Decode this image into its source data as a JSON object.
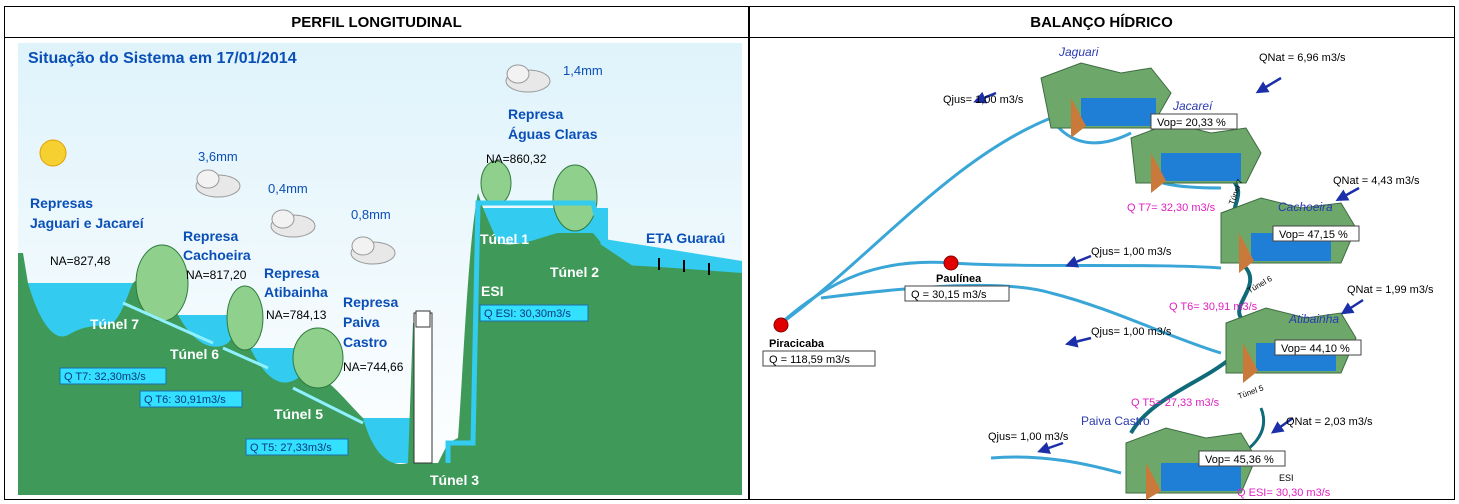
{
  "headers": {
    "left": "PERFIL LONGITUDINAL",
    "right": "BALANÇO HÍDRICO"
  },
  "profile": {
    "title": "Situação do Sistema em 17/01/2014",
    "rain": {
      "aguas_claras": "1,4mm",
      "cachoeira": "3,6mm",
      "atibainha": "0,4mm",
      "paiva": "0,8mm"
    },
    "labels": {
      "jaguari_1": "Represas",
      "jaguari_2": "Jaguari e Jacareí",
      "jaguari_na": "NA=827,48",
      "cachoeira_1": "Represa",
      "cachoeira_2": "Cachoeira",
      "cachoeira_na": "NA=817,20",
      "atibainha_1": "Represa",
      "atibainha_2": "Atibainha",
      "atibainha_na": "NA=784,13",
      "paiva_1": "Represa",
      "paiva_2": "Paiva",
      "paiva_3": "Castro",
      "paiva_na": "NA=744,66",
      "aguas_1": "Represa",
      "aguas_2": "Águas Claras",
      "aguas_na": "NA=860,32",
      "tunel7": "Túnel 7",
      "tunel6": "Túnel 6",
      "tunel5": "Túnel 5",
      "tunel3": "Túnel 3",
      "tunel1": "Túnel 1",
      "tunel2": "Túnel 2",
      "esi": "ESI",
      "eta": "ETA Guaraú"
    },
    "flows": {
      "qt7": "Q T7: 32,30m3/s",
      "qt6": "Q T6: 30,91m3/s",
      "qt5": "Q T5: 27,33m3/s",
      "qesi": "Q ESI: 30,30m3/s"
    }
  },
  "balance": {
    "jaguari": "Jaguari",
    "jacarei": "Jacareí",
    "cachoeira": "Cachoeira",
    "atibainha": "Atibainha",
    "paiva": "Paiva Castro",
    "qnat1": "QNat = 6,96 m3/s",
    "qnat2": "QNat = 4,43 m3/s",
    "qnat3": "QNat = 1,99 m3/s",
    "qnat4": "QNat = 2,03 m3/s",
    "qjus1": "Qjus= 1,00 m3/s",
    "qjus2": "Qjus= 1,00 m3/s",
    "qjus3": "Qjus= 1,00 m3/s",
    "qjus4": "Qjus= 1,00 m3/s",
    "vop1": "Vop= 20,33 %",
    "vop2": "Vop= 47,15 %",
    "vop3": "Vop= 44,10 %",
    "vop4": "Vop= 45,36 %",
    "qt7": "Q T7= 32,30 m3/s",
    "qt6": "Q T6= 30,91 m3/s",
    "qt5": "Q T5= 27,33 m3/s",
    "qesi": "Q ESI= 30,30 m3/s",
    "t7": "Túnel 7",
    "t6": "Túnel 6",
    "t5": "Túnel 5",
    "esi": "ESI",
    "paulinea": "Paulínea",
    "paulinea_q": "Q = 30,15 m3/s",
    "piracicaba": "Piracicaba",
    "piracicaba_q": "Q = 118,59 m3/s"
  },
  "colors": {
    "sky": "#0a4fb8",
    "water": "#33ccf0",
    "hill": "#8fd18c",
    "ground": "#3f9a5a",
    "flowbox": "#33e0ff",
    "river": "#3aa6d8",
    "magenta": "#e020c0",
    "arrow": "#1c2fa8"
  }
}
